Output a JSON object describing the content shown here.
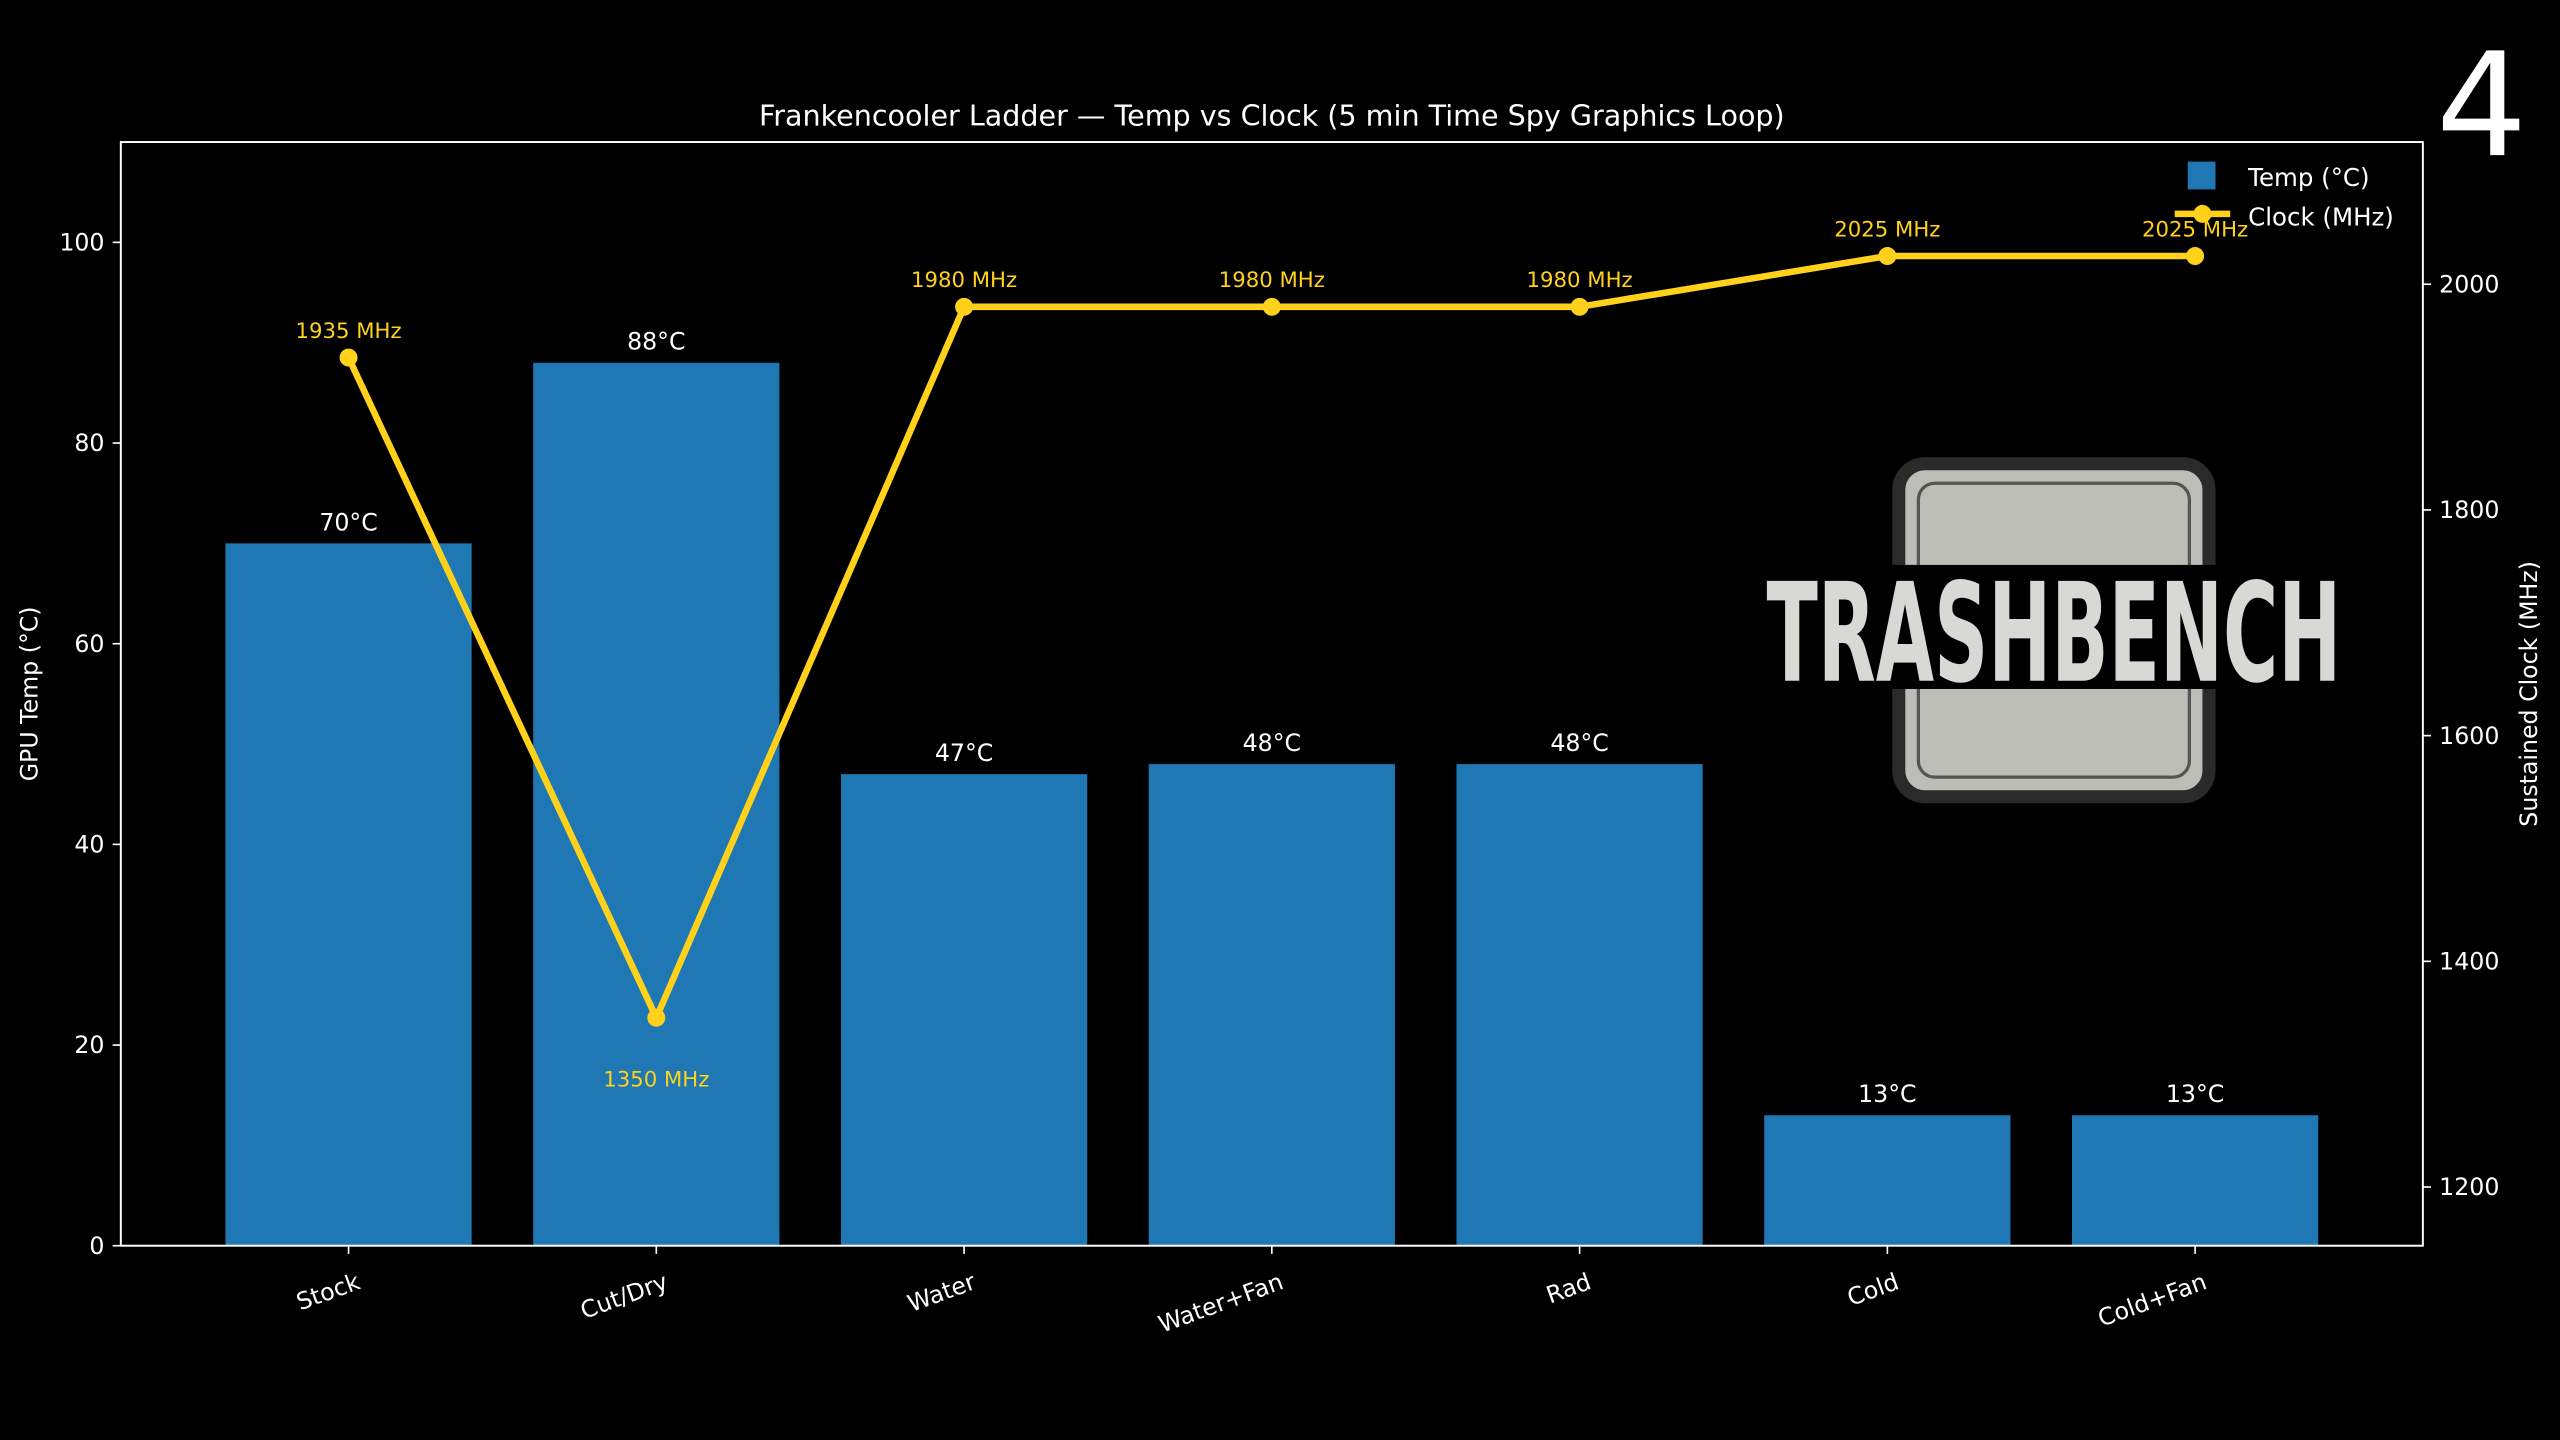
{
  "page_number": "4",
  "logo_text": "TRASHBENCH",
  "colors": {
    "background": "#000000",
    "bar": "#1f77b4",
    "line": "#ffd11a",
    "text": "#ffffff"
  },
  "chart_data": {
    "type": "bar+line",
    "title": "Frankencooler Ladder — Temp vs Clock (5 min Time Spy Graphics Loop)",
    "categories": [
      "Stock",
      "Cut/Dry",
      "Water",
      "Water+Fan",
      "Rad",
      "Cold",
      "Cold+Fan"
    ],
    "series": [
      {
        "name": "Temp (°C)",
        "type": "bar",
        "axis": "left",
        "values": [
          70,
          88,
          47,
          48,
          48,
          13,
          13
        ],
        "labels": [
          "70°C",
          "88°C",
          "47°C",
          "48°C",
          "48°C",
          "13°C",
          "13°C"
        ]
      },
      {
        "name": "Clock (MHz)",
        "type": "line",
        "axis": "right",
        "values": [
          1935,
          1350,
          1980,
          1980,
          1980,
          2025,
          2025
        ],
        "labels": [
          "1935 MHz",
          "1350 MHz",
          "1980 MHz",
          "1980 MHz",
          "1980 MHz",
          "2025 MHz",
          "2025 MHz"
        ]
      }
    ],
    "ylabel": "GPU Temp (°C)",
    "ylabel_right": "Sustained Clock (MHz)",
    "ylim": [
      0,
      110
    ],
    "ylim_right": [
      1148,
      2126
    ],
    "yticks": [
      0,
      20,
      40,
      60,
      80,
      100
    ],
    "yticks_right": [
      1200,
      1400,
      1600,
      1800,
      2000
    ],
    "grid": false,
    "legend": "top-right"
  }
}
